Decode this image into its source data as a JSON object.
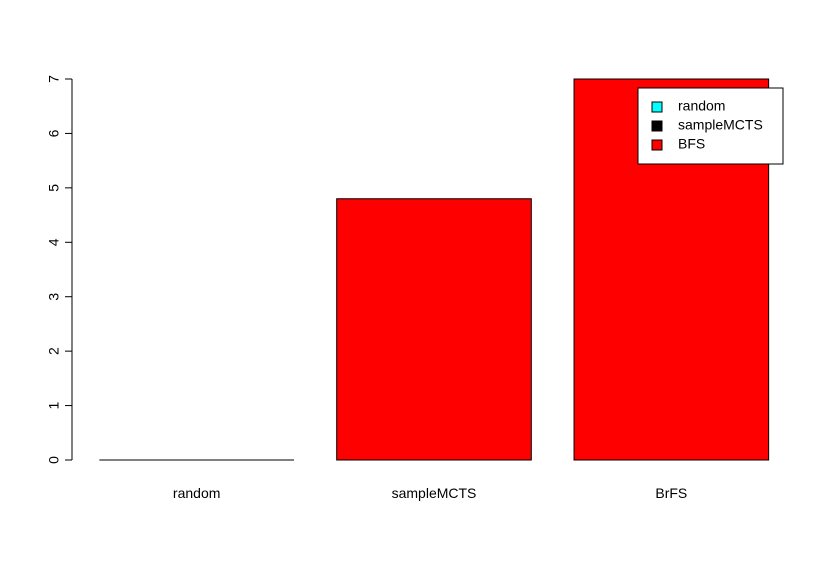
{
  "chart_data": {
    "type": "bar",
    "categories": [
      "random",
      "sampleMCTS",
      "BrFS"
    ],
    "values": [
      0,
      4.8,
      7.0
    ],
    "bar_colors": [
      "#ff0000",
      "#ff0000",
      "#ff0000"
    ],
    "ylim": [
      0,
      7
    ],
    "yticks": [
      0,
      1,
      2,
      3,
      4,
      5,
      6,
      7
    ],
    "title": "",
    "xlabel": "",
    "ylabel": "",
    "grid": false,
    "legend": {
      "placement": "top-right",
      "entries": [
        {
          "label": "random",
          "color": "#00ffff"
        },
        {
          "label": "sampleMCTS",
          "color": "#000000"
        },
        {
          "label": "BFS",
          "color": "#ff0000"
        }
      ]
    }
  }
}
